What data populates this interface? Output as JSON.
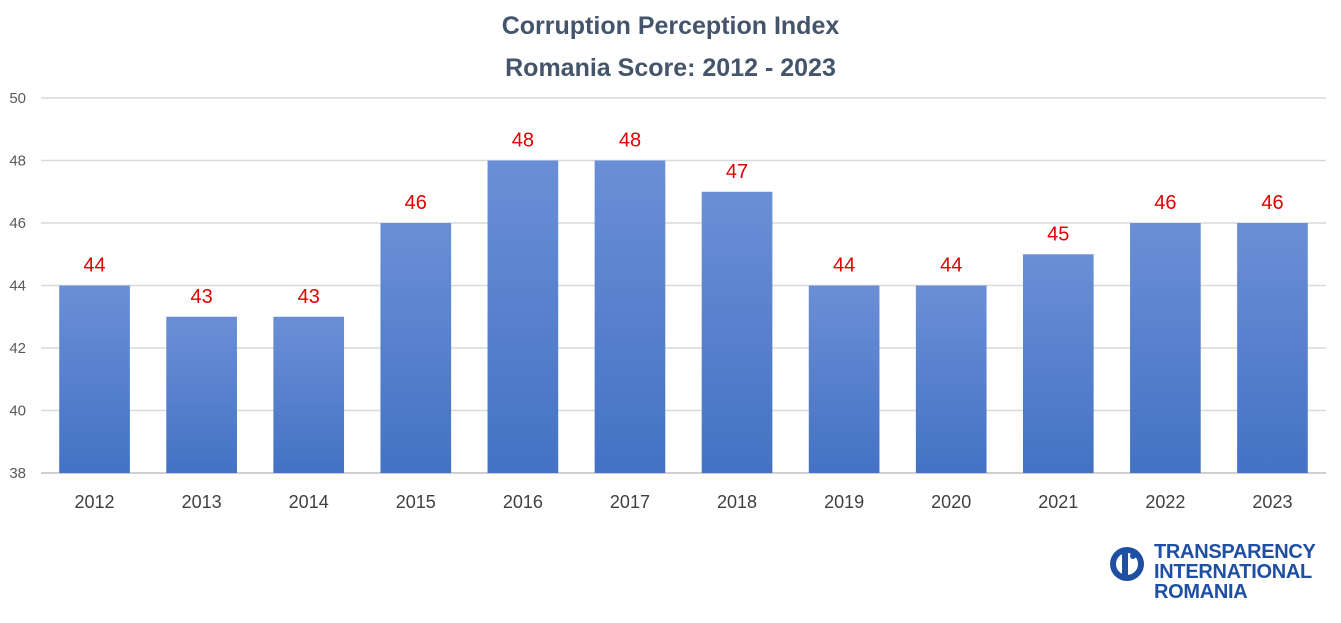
{
  "chart_data": {
    "type": "bar",
    "title": "Corruption Perception Index",
    "subtitle": "Romania Score: 2012 - 2023",
    "categories": [
      "2012",
      "2013",
      "2014",
      "2015",
      "2016",
      "2017",
      "2018",
      "2019",
      "2020",
      "2021",
      "2022",
      "2023"
    ],
    "values": [
      44,
      43,
      43,
      46,
      48,
      48,
      47,
      44,
      44,
      45,
      46,
      46
    ],
    "ylim": [
      38,
      50
    ],
    "yticks": [
      38,
      40,
      42,
      44,
      46,
      48,
      50
    ],
    "grid": true,
    "data_labels": true,
    "colors": {
      "bar": "#4472c4",
      "bar_light": "#6a8fd6",
      "data_label": "#e00000",
      "grid": "#d9d9d9"
    }
  },
  "logo": {
    "line1": "TRANSPARENCY",
    "line2": "INTERNATIONAL",
    "line3": "ROMANIA",
    "color": "#1f4fa3"
  }
}
